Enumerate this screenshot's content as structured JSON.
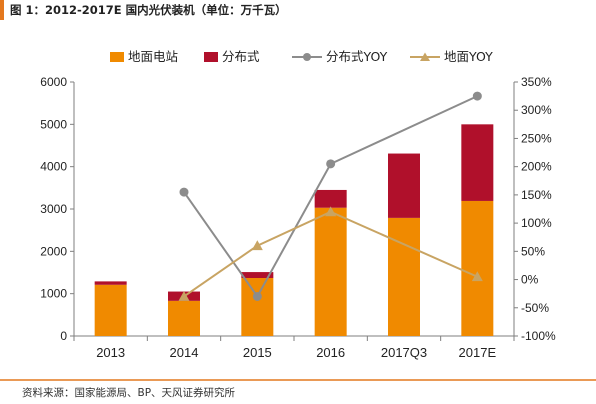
{
  "title": "图 1：2012-2017E 国内光伏装机（单位：万千瓦）",
  "source": "资料来源：国家能源局、BP、天风证券研究所",
  "colors": {
    "ground": "#f08a00",
    "distributed": "#b0102b",
    "dist_yoy": "#8c8c8c",
    "ground_yoy": "#c8a463",
    "title_bar": "#e4781e",
    "source_line": "#e4781e"
  },
  "chart_data": {
    "type": "bar",
    "categories": [
      "2013",
      "2014",
      "2015",
      "2016",
      "2017Q3",
      "2017E"
    ],
    "series": [
      {
        "name": "地面电站",
        "type": "bar",
        "axis": "left",
        "values": [
          1210,
          830,
          1370,
          3030,
          2790,
          3190
        ]
      },
      {
        "name": "分布式",
        "type": "bar",
        "axis": "left",
        "values": [
          80,
          220,
          140,
          420,
          1520,
          1810
        ]
      },
      {
        "name": "分布式YOY",
        "type": "line",
        "axis": "right",
        "values": [
          null,
          155,
          -30,
          205,
          null,
          325
        ]
      },
      {
        "name": "地面YOY",
        "type": "line",
        "axis": "right",
        "values": [
          null,
          -30,
          60,
          120,
          null,
          5
        ]
      }
    ],
    "yleft": {
      "min": 0,
      "max": 6000,
      "ticks": [
        "0",
        "1000",
        "2000",
        "3000",
        "4000",
        "5000",
        "6000"
      ]
    },
    "yright": {
      "min": -100,
      "max": 350,
      "ticks": [
        "-100%",
        "-50%",
        "0%",
        "50%",
        "100%",
        "150%",
        "200%",
        "250%",
        "300%",
        "350%"
      ]
    },
    "legend_position": "top",
    "grid": false
  }
}
